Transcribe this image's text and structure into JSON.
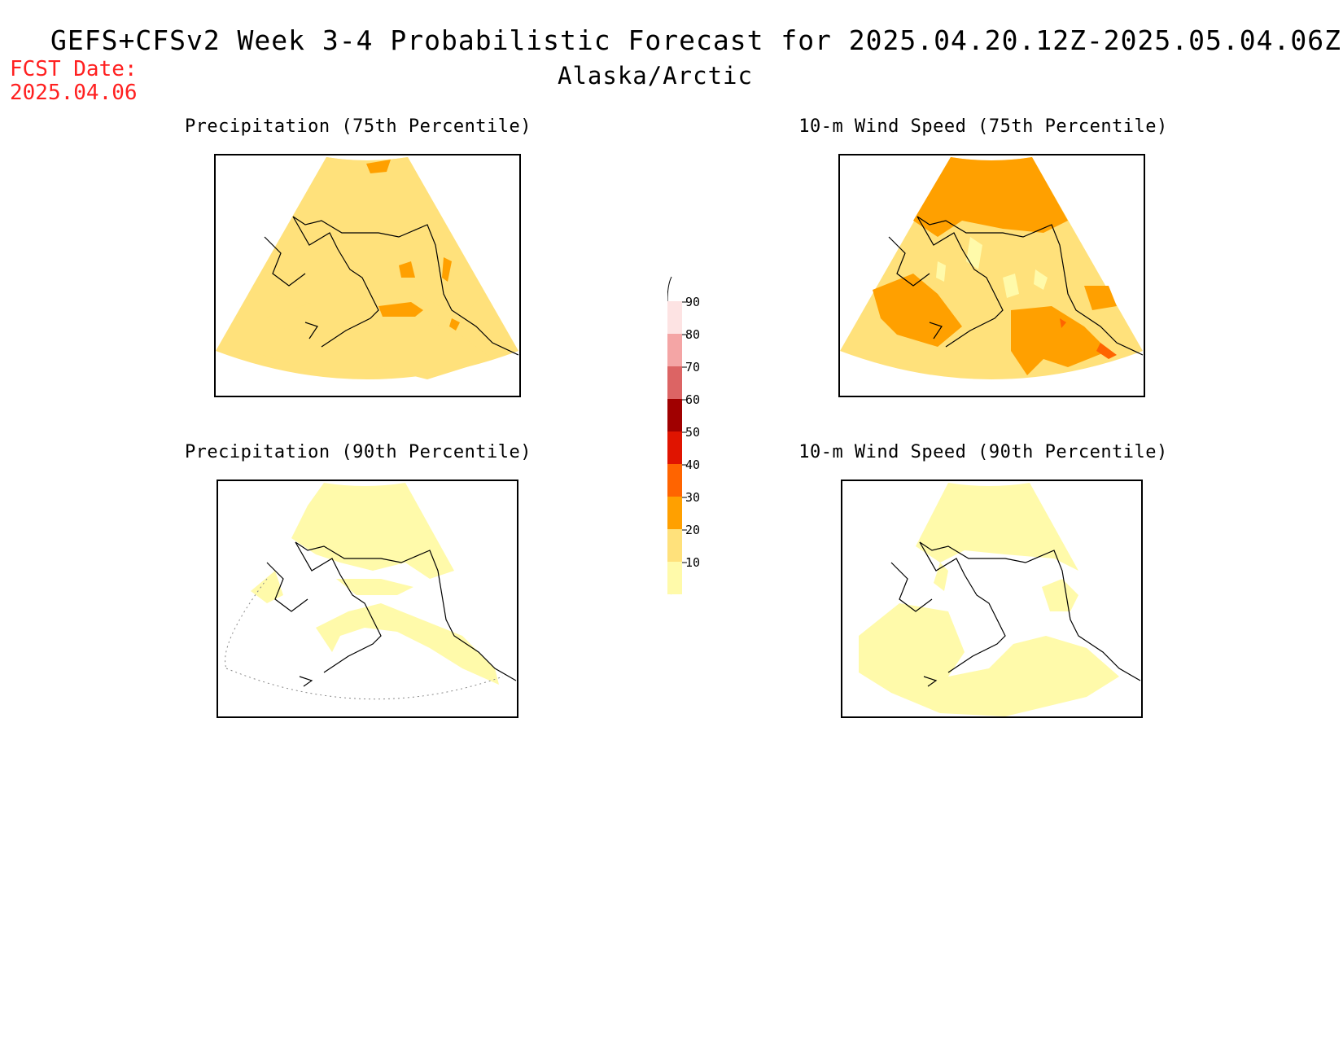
{
  "header": {
    "title": "GEFS+CFSv2 Week 3-4 Probabilistic Forecast for 2025.04.20.12Z-2025.05.04.06Z",
    "subtitle": "Alaska/Arctic",
    "fcst_label": "FCST Date:",
    "fcst_value": "2025.04.06"
  },
  "panels": [
    {
      "id": "precip-75",
      "title": "Precipitation (75th Percentile)",
      "dominant": "20-30"
    },
    {
      "id": "wind-75",
      "title": "10-m Wind Speed (75th Percentile)",
      "dominant": "30-40"
    },
    {
      "id": "precip-90",
      "title": "Precipitation (90th Percentile)",
      "dominant": "10-20"
    },
    {
      "id": "wind-90",
      "title": "10-m Wind Speed (90th Percentile)",
      "dominant": "10-20"
    }
  ],
  "colorbar": {
    "labels": [
      "90",
      "80",
      "70",
      "60",
      "50",
      "40",
      "30",
      "20",
      "10"
    ],
    "colors": [
      "#fde3e3",
      "#f4a5a5",
      "#dc6464",
      "#a00000",
      "#e01400",
      "#ff6400",
      "#ffa000",
      "#ffe17b",
      "#fffaaa"
    ]
  },
  "colors": {
    "c10": "#fffaaa",
    "c20": "#ffe17b",
    "c30": "#ffa000",
    "c40": "#ff6400",
    "fcst_text": "#ff2020"
  }
}
